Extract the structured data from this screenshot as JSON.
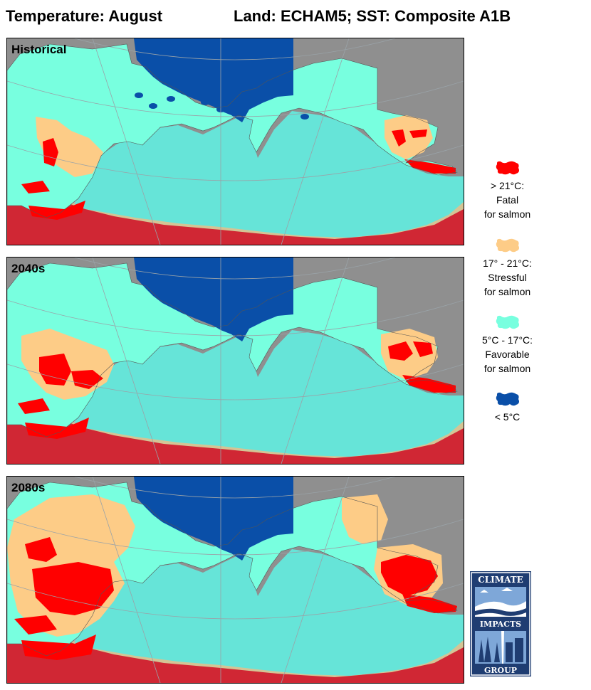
{
  "header": {
    "title_left": "Temperature: August",
    "title_right": "Land: ECHAM5; SST: Composite A1B"
  },
  "panels": [
    {
      "label": "Historical",
      "scenario": "historical"
    },
    {
      "label": "2040s",
      "scenario": "2040s"
    },
    {
      "label": "2080s",
      "scenario": "2080s"
    }
  ],
  "legend": [
    {
      "text": "> 21°C:\nFatal\nfor salmon",
      "color": "#ff0000"
    },
    {
      "text": "17° - 21°C:\nStressful\nfor salmon",
      "color": "#fdcc87"
    },
    {
      "text": "5°C - 17°C:\nFavorable\nfor salmon",
      "color": "#78ffdf"
    },
    {
      "text": "< 5°C",
      "color": "#0a4fa8"
    }
  ],
  "colors": {
    "land_gray": "#8f8f8f",
    "ice_gray": "#a9b1bd",
    "ocean_favorable": "#66e4d8",
    "ocean_stressful": "#d4c495",
    "ocean_fatal": "#d02734",
    "land_favorable": "#78ffdf",
    "land_stressful": "#fdcc87",
    "land_fatal": "#ff0000",
    "cold": "#0a4fa8"
  },
  "logo": {
    "top_text": "CLIMATE",
    "middle_text": "IMPACTS",
    "bottom_text": "GROUP"
  }
}
